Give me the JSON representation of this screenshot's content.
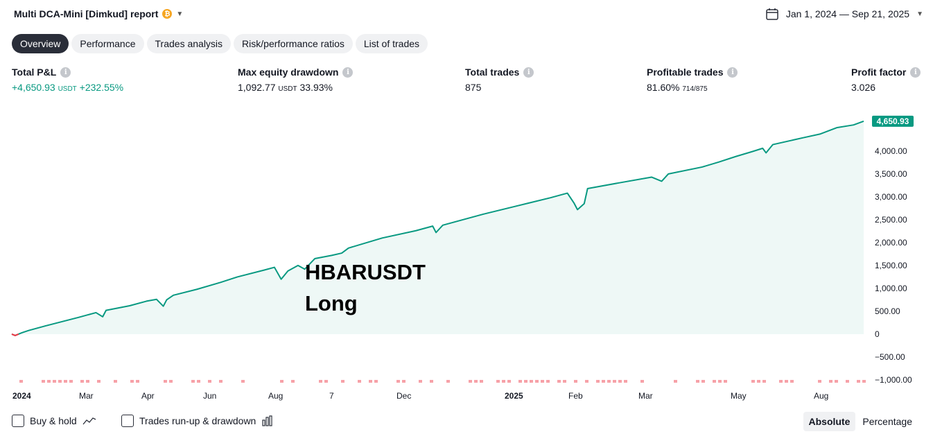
{
  "header": {
    "title": "Multi DCA-Mini [Dimkud] report",
    "badge_icon": "strategy-coin-icon",
    "date_range": "Jan 1, 2024 — Sep 21, 2025"
  },
  "tabs": [
    {
      "label": "Overview",
      "active": true
    },
    {
      "label": "Performance",
      "active": false
    },
    {
      "label": "Trades analysis",
      "active": false
    },
    {
      "label": "Risk/performance ratios",
      "active": false
    },
    {
      "label": "List of trades",
      "active": false
    }
  ],
  "metrics": {
    "total_pnl": {
      "label": "Total P&L",
      "value": "+4,650.93",
      "unit": "USDT",
      "percent": "+232.55%"
    },
    "max_drawdown": {
      "label": "Max equity drawdown",
      "value": "1,092.77",
      "unit": "USDT",
      "percent": "33.93%"
    },
    "total_trades": {
      "label": "Total trades",
      "value": "875"
    },
    "profitable_trades": {
      "label": "Profitable trades",
      "value": "81.60%",
      "ratio": "714/875"
    },
    "profit_factor": {
      "label": "Profit factor",
      "value": "3.026"
    }
  },
  "overlay": {
    "line1": "HBARUSDT",
    "line2": "Long"
  },
  "chart_data": {
    "type": "area",
    "ylim": [
      -1000,
      4800
    ],
    "y_ticks": [
      "4,000.00",
      "3,500.00",
      "3,000.00",
      "2,500.00",
      "2,000.00",
      "1,500.00",
      "1,000.00",
      "500.00",
      "0",
      "−500.00",
      "−1,000.00"
    ],
    "y_tick_values": [
      4000,
      3500,
      3000,
      2500,
      2000,
      1500,
      1000,
      500,
      0,
      -500,
      -1000
    ],
    "x_ticks": [
      "2024",
      "Mar",
      "Apr",
      "Jun",
      "Aug",
      "7",
      "Dec",
      "2025",
      "Feb",
      "Mar",
      "May",
      "Aug"
    ],
    "x_tick_bold": [
      true,
      false,
      false,
      false,
      false,
      false,
      false,
      true,
      false,
      false,
      false,
      false
    ],
    "last_value_label": "4,650.93",
    "series": [
      {
        "values": [
          [
            0,
            0
          ],
          [
            1,
            -30
          ],
          [
            3,
            30
          ],
          [
            5,
            80
          ],
          [
            10,
            180
          ],
          [
            20,
            370
          ],
          [
            25,
            470
          ],
          [
            27,
            380
          ],
          [
            28,
            520
          ],
          [
            35,
            620
          ],
          [
            40,
            720
          ],
          [
            43,
            760
          ],
          [
            45,
            610
          ],
          [
            46,
            750
          ],
          [
            48,
            850
          ],
          [
            55,
            980
          ],
          [
            62,
            1130
          ],
          [
            67,
            1250
          ],
          [
            75,
            1400
          ],
          [
            78,
            1460
          ],
          [
            80,
            1200
          ],
          [
            82,
            1380
          ],
          [
            85,
            1500
          ],
          [
            87,
            1420
          ],
          [
            90,
            1650
          ],
          [
            95,
            1720
          ],
          [
            98,
            1770
          ],
          [
            100,
            1880
          ],
          [
            110,
            2100
          ],
          [
            120,
            2260
          ],
          [
            125,
            2360
          ],
          [
            126,
            2220
          ],
          [
            128,
            2380
          ],
          [
            140,
            2620
          ],
          [
            150,
            2800
          ],
          [
            160,
            2980
          ],
          [
            165,
            3080
          ],
          [
            167,
            2860
          ],
          [
            168,
            2720
          ],
          [
            170,
            2850
          ],
          [
            171,
            3180
          ],
          [
            180,
            3300
          ],
          [
            190,
            3430
          ],
          [
            193,
            3340
          ],
          [
            195,
            3500
          ],
          [
            205,
            3650
          ],
          [
            210,
            3760
          ],
          [
            215,
            3880
          ],
          [
            220,
            3990
          ],
          [
            223,
            4060
          ],
          [
            224,
            3960
          ],
          [
            226,
            4140
          ],
          [
            235,
            4290
          ],
          [
            240,
            4370
          ],
          [
            245,
            4510
          ],
          [
            250,
            4570
          ],
          [
            253,
            4651
          ]
        ],
        "color": "#089981"
      }
    ]
  },
  "footer": {
    "buy_hold_label": "Buy & hold",
    "runup_label": "Trades run-up & drawdown",
    "absolute_label": "Absolute",
    "percentage_label": "Percentage"
  }
}
